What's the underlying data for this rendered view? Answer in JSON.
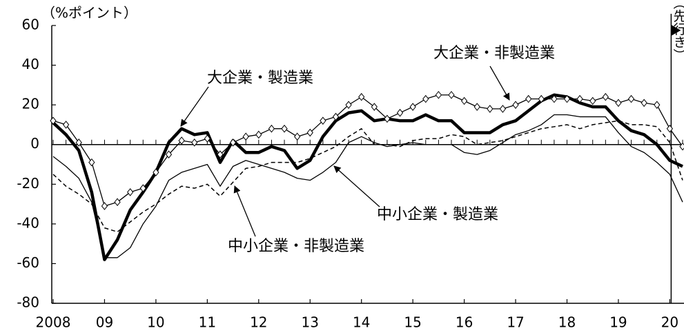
{
  "chart_data": {
    "type": "line",
    "y_unit": "（%ポイント）",
    "forecast_label": "（先行き）",
    "x": [
      2008,
      2008.25,
      2008.5,
      2008.75,
      2009,
      2009.25,
      2009.5,
      2009.75,
      2010,
      2010.25,
      2010.5,
      2010.75,
      2011,
      2011.25,
      2011.5,
      2011.75,
      2012,
      2012.25,
      2012.5,
      2012.75,
      2013,
      2013.25,
      2013.5,
      2013.75,
      2014,
      2014.25,
      2014.5,
      2014.75,
      2015,
      2015.25,
      2015.5,
      2015.75,
      2016,
      2016.25,
      2016.5,
      2016.75,
      2017,
      2017.25,
      2017.5,
      2017.75,
      2018,
      2018.25,
      2018.5,
      2018.75,
      2019,
      2019.25,
      2019.5,
      2019.75,
      2020,
      2020.25
    ],
    "series": [
      {
        "name": "大企業・製造業",
        "color": "#000000",
        "values": [
          11,
          5,
          -3,
          -24,
          -58,
          -48,
          -33,
          -24,
          -14,
          1,
          8,
          5,
          6,
          -9,
          2,
          -4,
          -4,
          -1,
          -3,
          -12,
          -8,
          4,
          12,
          16,
          17,
          12,
          13,
          12,
          12,
          15,
          12,
          12,
          6,
          6,
          6,
          10,
          12,
          17,
          22,
          25,
          24,
          21,
          19,
          19,
          12,
          7,
          5,
          0,
          -8,
          -11
        ]
      },
      {
        "name": "大企業・非製造業",
        "color": "#000000",
        "values": [
          12,
          10,
          1,
          -9,
          -31,
          -29,
          -24,
          -22,
          -14,
          -5,
          2,
          1,
          3,
          -5,
          1,
          4,
          5,
          8,
          8,
          4,
          6,
          12,
          14,
          20,
          24,
          19,
          13,
          16,
          19,
          23,
          25,
          25,
          22,
          19,
          18,
          18,
          20,
          23,
          23,
          23,
          23,
          23,
          22,
          24,
          21,
          23,
          21,
          20,
          8,
          -1
        ]
      },
      {
        "name": "中小企業・製造業",
        "color": "#000000",
        "values": [
          -6,
          -11,
          -17,
          -29,
          -57,
          -57,
          -52,
          -40,
          -31,
          -18,
          -14,
          -12,
          -10,
          -21,
          -11,
          -8,
          -10,
          -12,
          -14,
          -17,
          -18,
          -14,
          -9,
          1,
          4,
          1,
          -1,
          0,
          1,
          0,
          0,
          0,
          -4,
          -5,
          -3,
          1,
          5,
          7,
          10,
          15,
          15,
          14,
          14,
          14,
          6,
          -1,
          -4,
          -9,
          -15,
          -29
        ]
      },
      {
        "name": "中小企業・非製造業",
        "color": "#000000",
        "values": [
          -15,
          -21,
          -25,
          -30,
          -42,
          -44,
          -39,
          -34,
          -30,
          -25,
          -21,
          -22,
          -20,
          -26,
          -19,
          -12,
          -11,
          -9,
          -9,
          -9,
          -7,
          -4,
          -1,
          4,
          8,
          0,
          0,
          -1,
          2,
          3,
          3,
          5,
          4,
          0,
          1,
          2,
          4,
          6,
          8,
          9,
          10,
          8,
          10,
          11,
          12,
          10,
          10,
          9,
          1,
          -18
        ]
      }
    ],
    "xlim": [
      2008,
      2020.25
    ],
    "xticks": [
      {
        "value": 2008,
        "label": "2008"
      },
      {
        "value": 2009,
        "label": "09"
      },
      {
        "value": 2010,
        "label": "10"
      },
      {
        "value": 2011,
        "label": "11"
      },
      {
        "value": 2012,
        "label": "12"
      },
      {
        "value": 2013,
        "label": "13"
      },
      {
        "value": 2014,
        "label": "14"
      },
      {
        "value": 2015,
        "label": "15"
      },
      {
        "value": 2016,
        "label": "16"
      },
      {
        "value": 2017,
        "label": "17"
      },
      {
        "value": 2018,
        "label": "18"
      },
      {
        "value": 2019,
        "label": "19"
      },
      {
        "value": 2020,
        "label": "20"
      }
    ],
    "ylim": [
      -80,
      60
    ],
    "yticks": [
      60,
      40,
      20,
      0,
      -20,
      -40,
      -60,
      -80
    ]
  }
}
